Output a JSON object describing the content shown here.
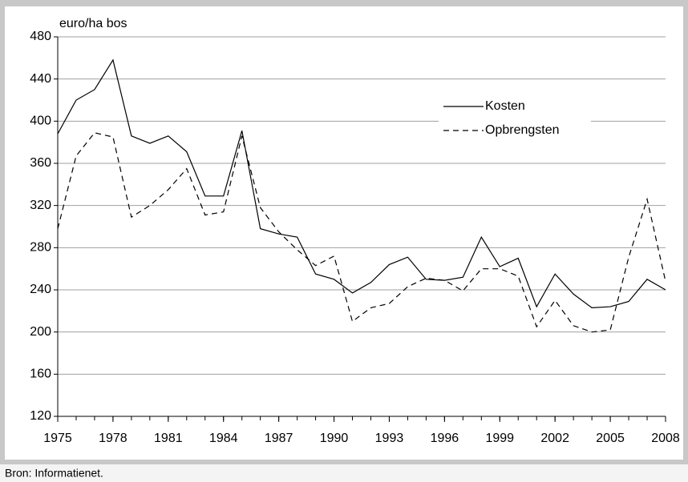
{
  "chart_data": {
    "type": "line",
    "y_label": "euro/ha bos",
    "source": "Bron: Informatienet.",
    "x": [
      1975,
      1976,
      1977,
      1978,
      1979,
      1980,
      1981,
      1982,
      1983,
      1984,
      1985,
      1986,
      1987,
      1988,
      1989,
      1990,
      1991,
      1992,
      1993,
      1994,
      1995,
      1996,
      1997,
      1998,
      1999,
      2000,
      2001,
      2002,
      2003,
      2004,
      2005,
      2006,
      2007,
      2008
    ],
    "xlim": [
      1975,
      2008
    ],
    "xticks": [
      1975,
      1978,
      1981,
      1984,
      1987,
      1990,
      1993,
      1996,
      1999,
      2002,
      2005,
      2008
    ],
    "ylim": [
      120,
      480
    ],
    "yticks": [
      120,
      160,
      200,
      240,
      280,
      320,
      360,
      400,
      440,
      480
    ],
    "grid": true,
    "legend": "upper right",
    "series": [
      {
        "name": "Kosten",
        "color": "#000000",
        "dash": "solid",
        "values": [
          388,
          420,
          430,
          458,
          386,
          379,
          386,
          371,
          329,
          329,
          391,
          298,
          293,
          290,
          255,
          250,
          237,
          247,
          264,
          271,
          250,
          249,
          252,
          290,
          262,
          270,
          224,
          255,
          236,
          223,
          224,
          229,
          250,
          240
        ]
      },
      {
        "name": "Opbrengsten",
        "color": "#000000",
        "dash": "dashed",
        "values": [
          298,
          367,
          389,
          385,
          309,
          320,
          335,
          355,
          311,
          314,
          386,
          318,
          295,
          278,
          263,
          272,
          210,
          223,
          227,
          243,
          251,
          249,
          239,
          260,
          260,
          253,
          205,
          230,
          206,
          200,
          202,
          271,
          326,
          248
        ]
      }
    ]
  }
}
